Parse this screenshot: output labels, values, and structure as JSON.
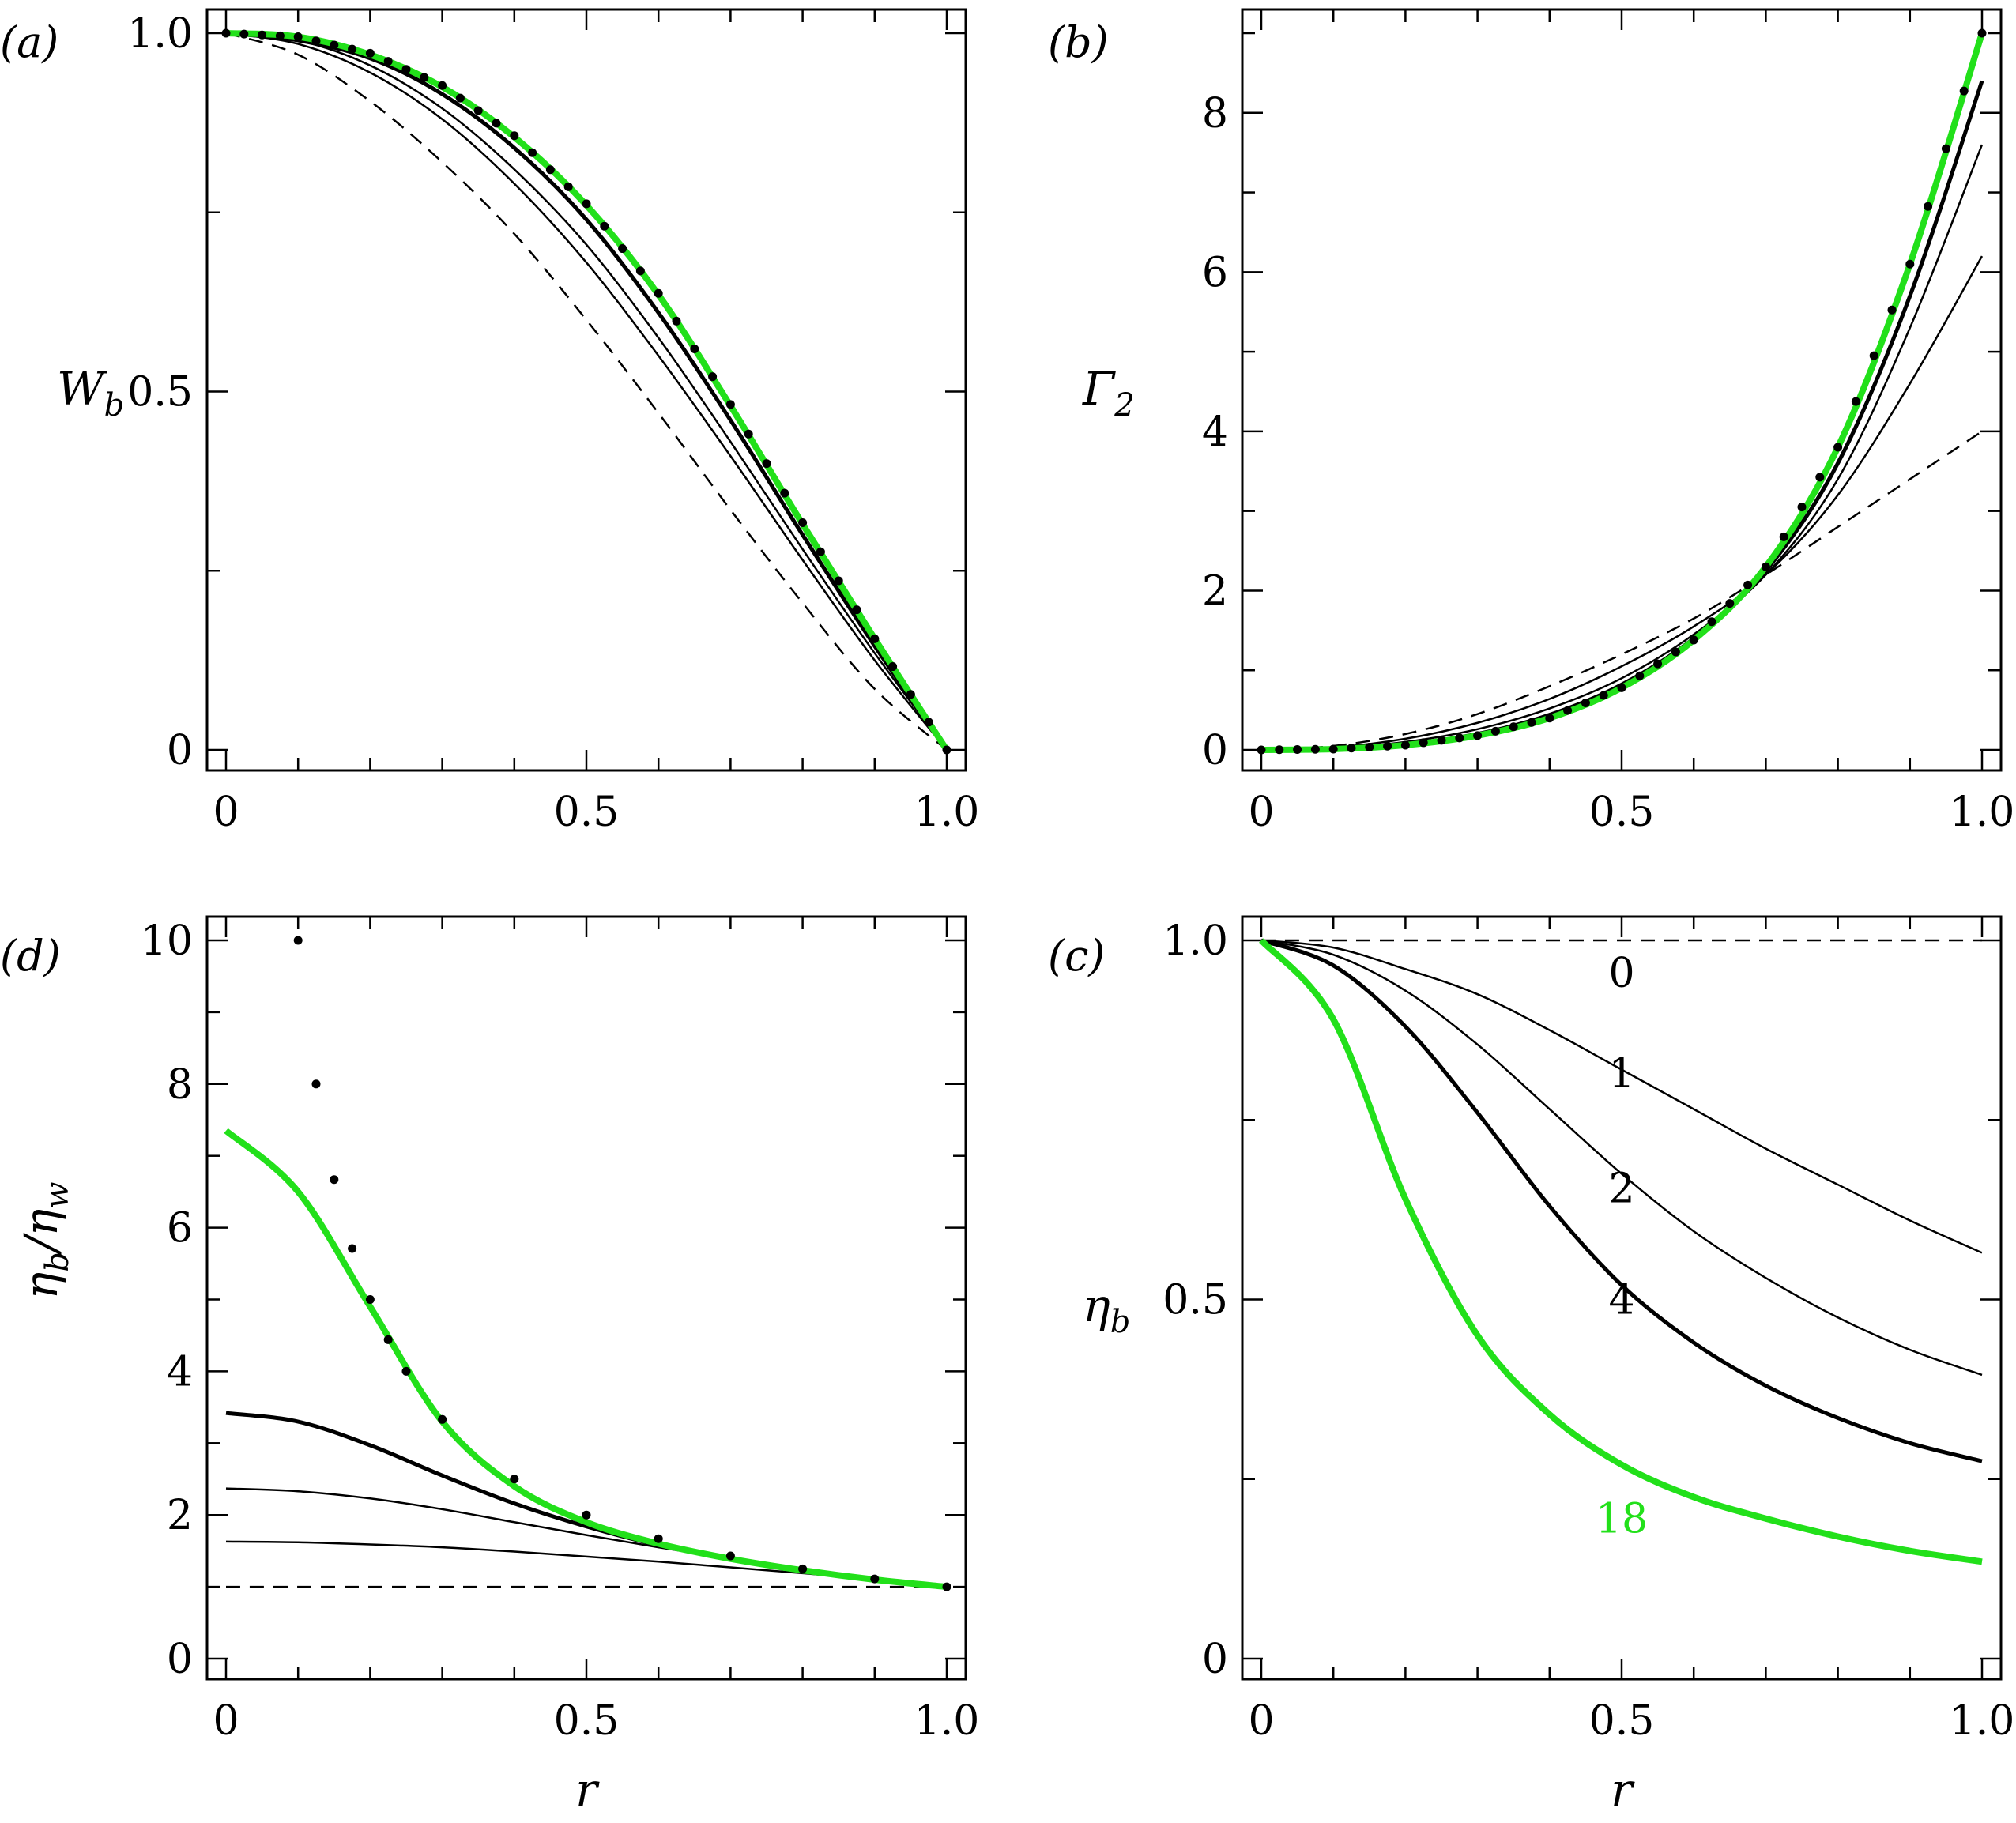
{
  "figure": {
    "panels": [
      "a",
      "b",
      "d",
      "c"
    ]
  },
  "colors": {
    "green": "#22e01a",
    "black": "#000000"
  },
  "chart_data": [
    {
      "id": "a",
      "type": "line",
      "panel_label": "(a)",
      "xlabel": "",
      "ylabel": "W_b",
      "xlim": [
        0,
        1
      ],
      "ylim": [
        0,
        1
      ],
      "xticks": [
        0,
        0.5,
        1.0
      ],
      "xtick_labels": [
        "0",
        "0.5",
        "1.0"
      ],
      "yticks": [
        0,
        0.5,
        1.0
      ],
      "ytick_labels": [
        "0",
        "0.5",
        "1.0"
      ],
      "x": [
        0,
        0.1,
        0.2,
        0.3,
        0.4,
        0.5,
        0.6,
        0.7,
        0.8,
        0.9,
        1.0
      ],
      "series": [
        {
          "style": "dashed",
          "values": [
            1.0,
            0.97,
            0.905,
            0.82,
            0.72,
            0.6,
            0.47,
            0.335,
            0.205,
            0.085,
            0.0
          ]
        },
        {
          "style": "thin",
          "values": [
            1.0,
            0.985,
            0.945,
            0.88,
            0.79,
            0.68,
            0.55,
            0.41,
            0.265,
            0.125,
            0.0
          ]
        },
        {
          "style": "thin",
          "values": [
            1.0,
            0.99,
            0.955,
            0.895,
            0.81,
            0.705,
            0.575,
            0.43,
            0.28,
            0.135,
            0.0
          ]
        },
        {
          "style": "thick",
          "values": [
            1.0,
            0.99,
            0.965,
            0.915,
            0.84,
            0.74,
            0.61,
            0.46,
            0.3,
            0.145,
            0.0
          ]
        },
        {
          "style": "green",
          "values": [
            1.0,
            0.995,
            0.97,
            0.925,
            0.855,
            0.76,
            0.635,
            0.48,
            0.315,
            0.155,
            0.0
          ]
        },
        {
          "style": "dots",
          "values": [
            1.0,
            0.995,
            0.972,
            0.927,
            0.857,
            0.762,
            0.637,
            0.482,
            0.317,
            0.155,
            0.0
          ]
        }
      ]
    },
    {
      "id": "b",
      "type": "line",
      "panel_label": "(b)",
      "xlabel": "",
      "ylabel": "Γ2",
      "xlim": [
        0,
        1
      ],
      "ylim": [
        0,
        9
      ],
      "xticks": [
        0,
        0.5,
        1.0
      ],
      "xtick_labels": [
        "0",
        "0.5",
        "1.0"
      ],
      "yticks": [
        0,
        2,
        4,
        6,
        8
      ],
      "ytick_labels": [
        "0",
        "2",
        "4",
        "6",
        "8"
      ],
      "x": [
        0,
        0.1,
        0.2,
        0.3,
        0.4,
        0.5,
        0.6,
        0.7,
        0.8,
        0.9,
        1.0
      ],
      "series": [
        {
          "style": "dashed",
          "values": [
            0,
            0.05,
            0.2,
            0.45,
            0.8,
            1.2,
            1.65,
            2.2,
            2.8,
            3.4,
            4.0
          ]
        },
        {
          "style": "thin",
          "values": [
            0,
            0.03,
            0.14,
            0.34,
            0.64,
            1.05,
            1.55,
            2.2,
            3.2,
            4.6,
            6.2
          ]
        },
        {
          "style": "thin",
          "values": [
            0,
            0.02,
            0.1,
            0.26,
            0.52,
            0.9,
            1.45,
            2.2,
            3.4,
            5.3,
            7.6
          ]
        },
        {
          "style": "thick",
          "values": [
            0,
            0.01,
            0.07,
            0.2,
            0.44,
            0.82,
            1.4,
            2.25,
            3.6,
            5.7,
            8.4
          ]
        },
        {
          "style": "green",
          "values": [
            0,
            0.01,
            0.06,
            0.18,
            0.4,
            0.78,
            1.38,
            2.3,
            3.8,
            6.1,
            9.0
          ]
        },
        {
          "style": "dots",
          "values": [
            0,
            0.01,
            0.06,
            0.18,
            0.4,
            0.78,
            1.38,
            2.3,
            3.8,
            6.1,
            9.0
          ]
        }
      ]
    },
    {
      "id": "d",
      "type": "line",
      "panel_label": "(d)",
      "xlabel": "r",
      "ylabel": "ηb/ηw",
      "xlim": [
        0,
        1
      ],
      "ylim": [
        0,
        10
      ],
      "xticks": [
        0,
        0.5,
        1.0
      ],
      "xtick_labels": [
        "0",
        "0.5",
        "1.0"
      ],
      "yticks": [
        0,
        2,
        4,
        6,
        8,
        10
      ],
      "ytick_labels": [
        "0",
        "2",
        "4",
        "6",
        "8",
        "10"
      ],
      "x": [
        0,
        0.1,
        0.2,
        0.3,
        0.4,
        0.5,
        0.6,
        0.7,
        0.8,
        0.9,
        1.0
      ],
      "series": [
        {
          "style": "dashed",
          "values": [
            1,
            1,
            1,
            1,
            1,
            1,
            1,
            1,
            1,
            1,
            1
          ]
        },
        {
          "style": "thin",
          "values": [
            1.63,
            1.62,
            1.59,
            1.55,
            1.49,
            1.42,
            1.35,
            1.27,
            1.19,
            1.1,
            1.0
          ]
        },
        {
          "style": "thin",
          "values": [
            2.37,
            2.33,
            2.23,
            2.08,
            1.9,
            1.72,
            1.55,
            1.39,
            1.24,
            1.11,
            1.0
          ]
        },
        {
          "style": "thick",
          "values": [
            3.42,
            3.3,
            2.97,
            2.55,
            2.16,
            1.84,
            1.58,
            1.39,
            1.23,
            1.1,
            1.0
          ]
        },
        {
          "style": "green",
          "values": [
            7.35,
            6.5,
            4.9,
            3.3,
            2.4,
            1.9,
            1.6,
            1.39,
            1.23,
            1.1,
            1.0
          ]
        },
        {
          "style": "dots",
          "x": [
            0.1,
            0.125,
            0.15,
            0.175,
            0.2,
            0.225,
            0.25,
            0.3,
            0.4,
            0.5,
            0.6,
            0.7,
            0.8,
            0.9,
            1.0
          ],
          "values": [
            10.0,
            8.0,
            6.67,
            5.71,
            5.0,
            4.44,
            4.0,
            3.33,
            2.5,
            2.0,
            1.67,
            1.43,
            1.25,
            1.11,
            1.0
          ]
        }
      ]
    },
    {
      "id": "c",
      "type": "line",
      "panel_label": "(c)",
      "xlabel": "r",
      "ylabel": "ηb",
      "xlim": [
        0,
        1
      ],
      "ylim": [
        0,
        1
      ],
      "xticks": [
        0,
        0.5,
        1.0
      ],
      "xtick_labels": [
        "0",
        "0.5",
        "1.0"
      ],
      "yticks": [
        0,
        0.5,
        1.0
      ],
      "ytick_labels": [
        "0",
        "0.5",
        "1.0"
      ],
      "x": [
        0,
        0.1,
        0.2,
        0.3,
        0.4,
        0.5,
        0.6,
        0.7,
        0.8,
        0.9,
        1.0
      ],
      "series": [
        {
          "style": "dashed",
          "name": "",
          "values": [
            1,
            1,
            1,
            1,
            1,
            1,
            1,
            1,
            1,
            1,
            1
          ]
        },
        {
          "style": "thin",
          "name": "",
          "values": [
            1.0,
            0.99,
            0.96,
            0.925,
            0.875,
            0.82,
            0.765,
            0.71,
            0.66,
            0.61,
            0.565
          ]
        },
        {
          "style": "thin",
          "name": "",
          "values": [
            1.0,
            0.98,
            0.93,
            0.855,
            0.765,
            0.675,
            0.595,
            0.53,
            0.475,
            0.43,
            0.395
          ]
        },
        {
          "style": "thick",
          "name": "",
          "values": [
            1.0,
            0.965,
            0.88,
            0.76,
            0.63,
            0.52,
            0.44,
            0.38,
            0.335,
            0.3,
            0.275
          ]
        },
        {
          "style": "green",
          "name": "",
          "values": [
            1.0,
            0.89,
            0.64,
            0.45,
            0.34,
            0.27,
            0.225,
            0.195,
            0.17,
            0.15,
            0.135
          ]
        }
      ],
      "annotations": [
        {
          "text": "0",
          "x": 0.5,
          "y": 0.955,
          "color": "#000000"
        },
        {
          "text": "1",
          "x": 0.5,
          "y": 0.815,
          "color": "#000000"
        },
        {
          "text": "2",
          "x": 0.5,
          "y": 0.655,
          "color": "#000000"
        },
        {
          "text": "4",
          "x": 0.5,
          "y": 0.5,
          "color": "#000000"
        },
        {
          "text": "18",
          "x": 0.5,
          "y": 0.195,
          "color": "#22e01a"
        }
      ]
    }
  ]
}
